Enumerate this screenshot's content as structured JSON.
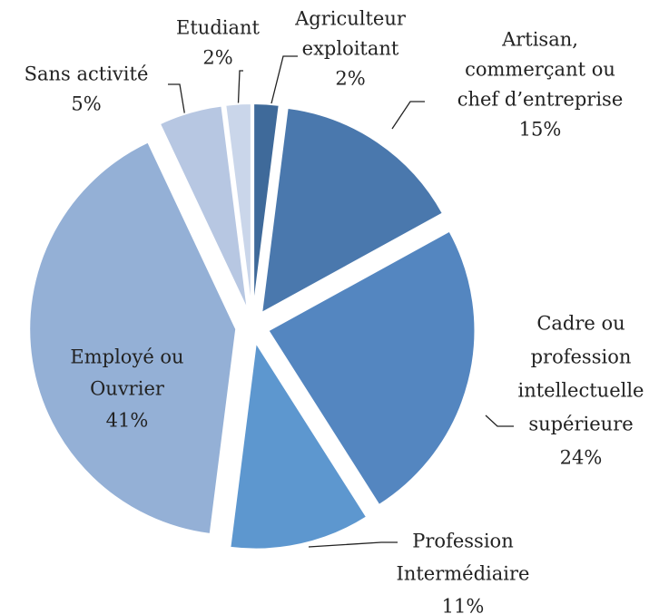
{
  "chart_data": {
    "type": "pie",
    "categories": [
      [
        "Agriculteur",
        "exploitant"
      ],
      [
        "Artisan,",
        "commerçant ou",
        "chef d’entreprise"
      ],
      [
        "Cadre ou",
        "profession",
        "intellectuelle",
        "supérieure"
      ],
      [
        "Profession",
        "Intermédiaire"
      ],
      [
        "Employé ou",
        "Ouvrier"
      ],
      [
        "Sans activité"
      ],
      [
        "Etudiant"
      ]
    ],
    "values": [
      2,
      15,
      24,
      11,
      41,
      5,
      2
    ],
    "value_labels": [
      "2%",
      "15%",
      "24%",
      "11%",
      "41%",
      "5%",
      "2%"
    ],
    "colors": [
      "#3f6a9a",
      "#4a78ad",
      "#5486c0",
      "#5d97cf",
      "#94b0d6",
      "#b7c7e2",
      "#cad6ea"
    ]
  }
}
